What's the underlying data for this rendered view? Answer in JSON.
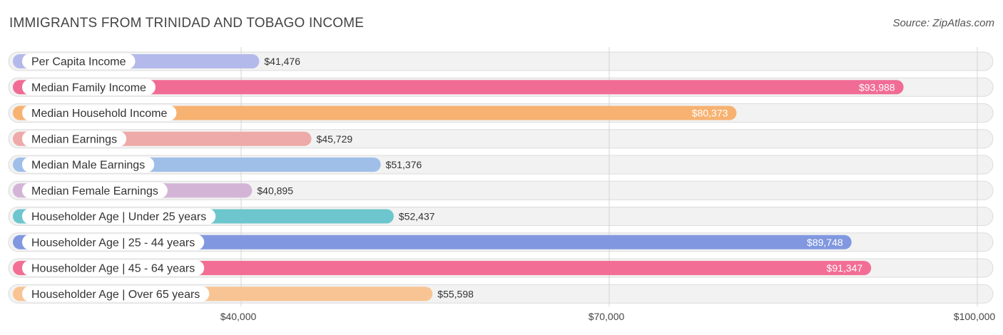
{
  "header": {
    "title": "IMMIGRANTS FROM TRINIDAD AND TOBAGO INCOME",
    "source": "Source: ZipAtlas.com"
  },
  "chart_data": {
    "type": "bar",
    "orientation": "horizontal",
    "title": "IMMIGRANTS FROM TRINIDAD AND TOBAGO INCOME",
    "xlabel": "",
    "ylabel": "",
    "xlim": [
      21500,
      101500
    ],
    "grid": true,
    "categories": [
      "Per Capita Income",
      "Median Family Income",
      "Median Household Income",
      "Median Earnings",
      "Median Male Earnings",
      "Median Female Earnings",
      "Householder Age | Under 25 years",
      "Householder Age | 25 - 44 years",
      "Householder Age | 45 - 64 years",
      "Householder Age | Over 65 years"
    ],
    "values": [
      41476,
      93988,
      80373,
      45729,
      51376,
      40895,
      52437,
      89748,
      91347,
      55598
    ],
    "value_labels": [
      "$41,476",
      "$93,988",
      "$80,373",
      "$45,729",
      "$51,376",
      "$40,895",
      "$52,437",
      "$89,748",
      "$91,347",
      "$55,598"
    ],
    "colors": [
      "#b3b9ea",
      "#f06c95",
      "#f7b271",
      "#eeaaa8",
      "#9fbfe8",
      "#d3b4d7",
      "#6dc6cd",
      "#8198e0",
      "#f26e95",
      "#f8c493"
    ],
    "ticks": [
      40000,
      70000,
      100000
    ],
    "tick_labels": [
      "$40,000",
      "$70,000",
      "$100,000"
    ]
  }
}
